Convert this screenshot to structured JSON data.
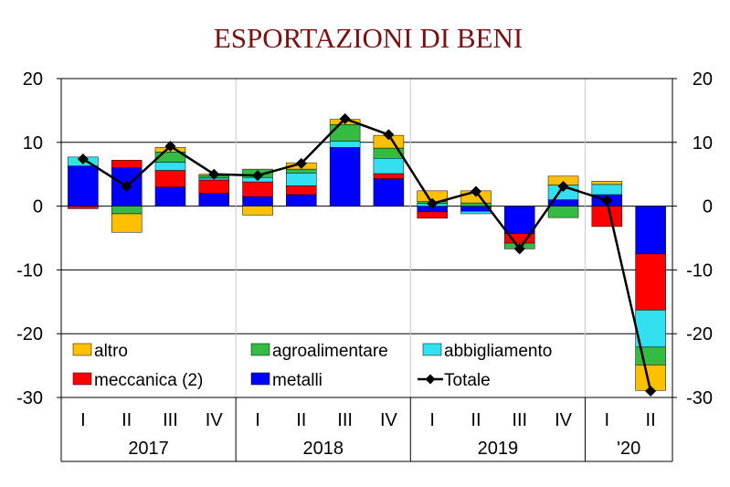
{
  "chart_data": {
    "type": "bar",
    "stacked": true,
    "title": "ESPORTAZIONI DI BENI",
    "xlabel": "",
    "ylabel": "",
    "ylim": [
      -30,
      20
    ],
    "yticks": [
      20,
      10,
      0,
      -10,
      -20,
      -30
    ],
    "grid": "horizontal",
    "legend_position": "bottom-left",
    "categories": [
      "I",
      "II",
      "III",
      "IV",
      "I",
      "II",
      "III",
      "IV",
      "I",
      "II",
      "III",
      "IV",
      "I",
      "II"
    ],
    "year_groups": [
      {
        "label": "2017",
        "start": 0,
        "count": 4
      },
      {
        "label": "2018",
        "start": 4,
        "count": 4
      },
      {
        "label": "2019",
        "start": 8,
        "count": 4
      },
      {
        "label": "'20",
        "start": 12,
        "count": 2
      }
    ],
    "series": [
      {
        "name": "metalli",
        "color": "#0000ff",
        "values": [
          6.3,
          6.0,
          3.0,
          2.0,
          1.5,
          1.8,
          9.2,
          4.3,
          -0.9,
          -0.8,
          -4.3,
          1.0,
          1.8,
          -7.5
        ]
      },
      {
        "name": "meccanica (2)",
        "color": "#ff0000",
        "values": [
          -0.4,
          1.2,
          2.6,
          2.1,
          2.3,
          1.4,
          0.0,
          0.8,
          -1.0,
          0.0,
          -1.5,
          0.0,
          -3.2,
          -8.8
        ]
      },
      {
        "name": "abbigliamento",
        "color": "#33e0f0",
        "values": [
          1.4,
          0.0,
          1.3,
          0.3,
          0.7,
          2.0,
          1.0,
          2.4,
          0.4,
          -0.4,
          0.0,
          2.3,
          1.6,
          -5.8
        ]
      },
      {
        "name": "agroalimentare",
        "color": "#33bb44",
        "values": [
          0.0,
          -1.2,
          1.6,
          0.4,
          1.3,
          0.6,
          2.6,
          1.6,
          0.3,
          0.5,
          -0.9,
          -1.8,
          0.0,
          -2.8
        ]
      },
      {
        "name": "altro",
        "color": "#ffc000",
        "values": [
          0.0,
          -2.9,
          0.7,
          0.2,
          -1.4,
          1.0,
          0.8,
          2.0,
          1.7,
          1.9,
          0.0,
          1.4,
          0.5,
          -4.0
        ]
      }
    ],
    "totale": {
      "name": "Totale",
      "color": "#000000",
      "values": [
        7.4,
        3.1,
        9.4,
        5.0,
        4.8,
        6.7,
        13.7,
        11.2,
        0.4,
        2.3,
        -6.7,
        3.1,
        0.9,
        -29.0
      ]
    },
    "legend": [
      {
        "label": "altro",
        "color": "#ffc000",
        "kind": "box"
      },
      {
        "label": "agroalimentare",
        "color": "#33bb44",
        "kind": "box"
      },
      {
        "label": "abbigliamento",
        "color": "#33e0f0",
        "kind": "box"
      },
      {
        "label": "meccanica (2)",
        "color": "#ff0000",
        "kind": "box"
      },
      {
        "label": "metalli",
        "color": "#0000ff",
        "kind": "box"
      },
      {
        "label": "Totale",
        "color": "#000000",
        "kind": "line"
      }
    ]
  }
}
